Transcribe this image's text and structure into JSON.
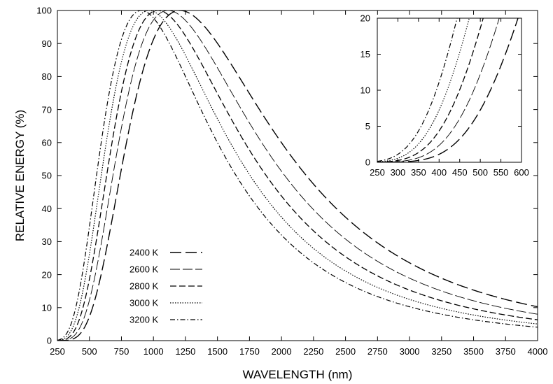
{
  "chart_data": [
    {
      "type": "line",
      "title": "",
      "xlabel": "WAVELENGTH (nm)",
      "ylabel": "RELATIVE ENERGY (%)",
      "xlim": [
        250,
        4000
      ],
      "ylim": [
        0,
        100
      ],
      "xticks": [
        250,
        500,
        750,
        1000,
        1250,
        1500,
        1750,
        2000,
        2250,
        2500,
        2750,
        3000,
        3250,
        3500,
        3750,
        4000
      ],
      "yticks": [
        0,
        10,
        20,
        30,
        40,
        50,
        60,
        70,
        80,
        90,
        100
      ],
      "grid": false,
      "legend_position": "bottom-left",
      "series": [
        {
          "name": "2400 K",
          "temperature_K": 2400,
          "dash": "long-dash"
        },
        {
          "name": "2600 K",
          "temperature_K": 2600,
          "dash": "thin-long-dash"
        },
        {
          "name": "2800 K",
          "temperature_K": 2800,
          "dash": "medium-dash"
        },
        {
          "name": "3000 K",
          "temperature_K": 3000,
          "dash": "dotted"
        },
        {
          "name": "3200 K",
          "temperature_K": 3200,
          "dash": "dash-dot"
        }
      ]
    },
    {
      "type": "line",
      "title": "",
      "xlabel": "",
      "ylabel": "",
      "xlim": [
        250,
        600
      ],
      "ylim": [
        0,
        20
      ],
      "xticks": [
        250,
        300,
        350,
        400,
        450,
        500,
        550,
        600
      ],
      "yticks": [
        0,
        5,
        10,
        15,
        20
      ],
      "grid": false,
      "legend_position": "none",
      "series_ref": "same series as main chart"
    }
  ]
}
